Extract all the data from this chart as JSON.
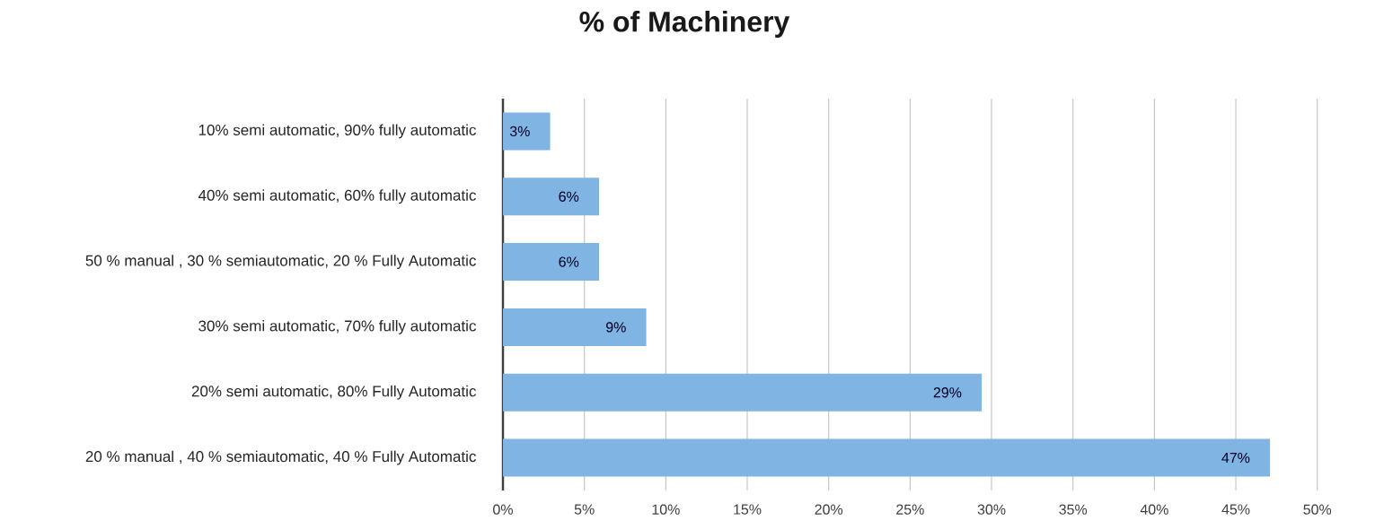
{
  "chart_data": {
    "type": "bar",
    "orientation": "horizontal",
    "title": "% of Machinery",
    "categories": [
      "10% semi automatic, 90% fully automatic",
      "40% semi automatic, 60% fully automatic",
      "50 % manual , 30 % semiautomatic, 20 % Fully Automatic",
      "30% semi automatic, 70% fully automatic",
      "20% semi automatic, 80% Fully Automatic",
      "20 % manual , 40 % semiautomatic, 40 % Fully Automatic"
    ],
    "values": [
      2.9,
      5.9,
      5.9,
      8.8,
      29.4,
      47.1
    ],
    "value_labels": [
      "3%",
      "6%",
      "6%",
      "9%",
      "29%",
      "47%"
    ],
    "color": "#80b4e2",
    "xlim": [
      0,
      50
    ],
    "xticks": [
      {
        "value": 0,
        "label": "0%"
      },
      {
        "value": 5,
        "label": "5%"
      },
      {
        "value": 10,
        "label": "10%"
      },
      {
        "value": 15,
        "label": "15%"
      },
      {
        "value": 20,
        "label": "20%"
      },
      {
        "value": 25,
        "label": "25%"
      },
      {
        "value": 30,
        "label": "30%"
      },
      {
        "value": 35,
        "label": "35%"
      },
      {
        "value": 40,
        "label": "40%"
      },
      {
        "value": 45,
        "label": "45%"
      },
      {
        "value": 50,
        "label": "50%"
      }
    ],
    "grid": "x"
  }
}
